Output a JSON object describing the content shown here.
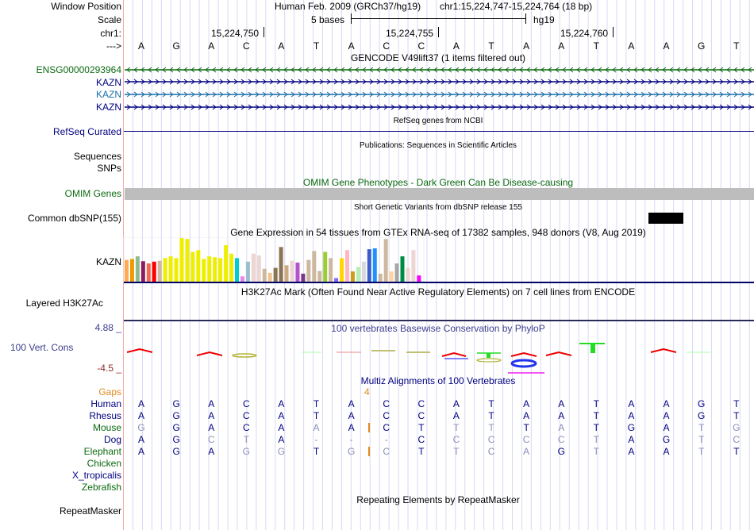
{
  "header": {
    "window_position_label": "Window Position",
    "scale_label": "Scale",
    "chrom_label": "chr1:",
    "strand_label": "--->",
    "assembly": "Human Feb. 2009 (GRCh37/hg19)",
    "position": "chr1:15,224,747-15,224,764 (18 bp)",
    "scale_text": "5 bases",
    "scale_db": "hg19",
    "ruler_ticks": [
      "15,224,750",
      "15,224,755",
      "15,224,760"
    ]
  },
  "sequence": [
    "A",
    "G",
    "A",
    "C",
    "A",
    "T",
    "A",
    "C",
    "C",
    "A",
    "T",
    "A",
    "A",
    "T",
    "A",
    "A",
    "G",
    "T"
  ],
  "tracks": {
    "gencode": {
      "title": "GENCODE V49lift37 (1 items filtered out)",
      "items": [
        {
          "label": "ENSG00000293964",
          "strand": "-",
          "color": "#0b6a10"
        },
        {
          "label": "KAZN",
          "strand": "+",
          "color": "#000080"
        },
        {
          "label": "KAZN",
          "strand": "+",
          "color": "#1a6fa8"
        },
        {
          "label": "KAZN",
          "strand": "+",
          "color": "#000080"
        }
      ]
    },
    "refseq": {
      "label": "RefSeq Curated",
      "title": "RefSeq genes from NCBI"
    },
    "publications": {
      "label1": "Sequences",
      "label2": "SNPs",
      "title": "Publications: Sequences in Scientific Articles"
    },
    "omim": {
      "label": "OMIM Genes",
      "title": "OMIM Gene Phenotypes - Dark Green Can Be Disease-causing"
    },
    "dbsnp": {
      "label": "Common dbSNP(155)",
      "title": "Short Genetic Variants from dbSNP release 155"
    },
    "gtex": {
      "label": "KAZN",
      "title": "Gene Expression in 54 tissues from GTEx RNA-seq of 17382 samples, 948 donors (V8, Aug 2019)",
      "bars": [
        {
          "v": 0.49,
          "c": "#ffaa55"
        },
        {
          "v": 0.51,
          "c": "#ee9a00"
        },
        {
          "v": 0.57,
          "c": "#8fbc8f"
        },
        {
          "v": 0.46,
          "c": "#8b1c62"
        },
        {
          "v": 0.41,
          "c": "#ee6a50"
        },
        {
          "v": 0.45,
          "c": "#ff0000"
        },
        {
          "v": 0.47,
          "c": "#cdb79e"
        },
        {
          "v": 0.53,
          "c": "#eeee00"
        },
        {
          "v": 0.57,
          "c": "#eeee00"
        },
        {
          "v": 0.53,
          "c": "#eeee00"
        },
        {
          "v": 0.98,
          "c": "#eeee00"
        },
        {
          "v": 0.96,
          "c": "#eeee00"
        },
        {
          "v": 0.67,
          "c": "#eeee00"
        },
        {
          "v": 0.71,
          "c": "#eeee00"
        },
        {
          "v": 0.51,
          "c": "#eeee00"
        },
        {
          "v": 0.57,
          "c": "#eeee00"
        },
        {
          "v": 0.55,
          "c": "#eeee00"
        },
        {
          "v": 0.53,
          "c": "#eeee00"
        },
        {
          "v": 0.82,
          "c": "#eeee00"
        },
        {
          "v": 0.63,
          "c": "#eeee00"
        },
        {
          "v": 0.53,
          "c": "#00cdcd"
        },
        {
          "v": 0.12,
          "c": "#ee82ee"
        },
        {
          "v": 0.45,
          "c": "#9ac0cd"
        },
        {
          "v": 0.63,
          "c": "#eed5d2"
        },
        {
          "v": 0.59,
          "c": "#eed5d2"
        },
        {
          "v": 0.29,
          "c": "#cdb79e"
        },
        {
          "v": 0.2,
          "c": "#eec591"
        },
        {
          "v": 0.31,
          "c": "#8b7355"
        },
        {
          "v": 0.78,
          "c": "#8b7355"
        },
        {
          "v": 0.37,
          "c": "#cdaa7d"
        },
        {
          "v": 0.47,
          "c": "#eed5d2"
        },
        {
          "v": 0.43,
          "c": "#b452cd"
        },
        {
          "v": 0.18,
          "c": "#7a378b"
        },
        {
          "v": 0.49,
          "c": "#cdb79e"
        },
        {
          "v": 0.69,
          "c": "#cdb79e"
        },
        {
          "v": 0.24,
          "c": "#cdb79e"
        },
        {
          "v": 0.67,
          "c": "#9acd32"
        },
        {
          "v": 0.53,
          "c": "#cdb79e"
        },
        {
          "v": 0.08,
          "c": "#7f69ff"
        },
        {
          "v": 0.53,
          "c": "#ffd700"
        },
        {
          "v": 0.71,
          "c": "#ffb6c1"
        },
        {
          "v": 0.23,
          "c": "#cd9b1d"
        },
        {
          "v": 0.33,
          "c": "#b4eeb4"
        },
        {
          "v": 0.45,
          "c": "#d9d9d9"
        },
        {
          "v": 0.73,
          "c": "#3a5fcd"
        },
        {
          "v": 0.75,
          "c": "#1e90ff"
        },
        {
          "v": 0.18,
          "c": "#cdb79e"
        },
        {
          "v": 0.96,
          "c": "#cdb79e"
        },
        {
          "v": 0.23,
          "c": "#ffd39b"
        },
        {
          "v": 0.41,
          "c": "#a6a6a6"
        },
        {
          "v": 0.57,
          "c": "#008b45"
        },
        {
          "v": 0.31,
          "c": "#eed5d2"
        },
        {
          "v": 0.71,
          "c": "#eed5d2"
        },
        {
          "v": 0.14,
          "c": "#ff00ff"
        }
      ]
    },
    "h3k27ac": {
      "label": "Layered H3K27Ac",
      "title": "H3K27Ac Mark (Often Found Near Active Regulatory Elements) on 7 cell lines from ENCODE"
    },
    "phylop": {
      "label": "100 Vert. Cons",
      "title": "100 vertebrates Basewise Conservation by PhyloP",
      "ymax": "4.88 _",
      "ymin": "-4.5 _"
    },
    "multiz": {
      "title": "Multiz Alignments of 100 Vertebrates",
      "gaps_label": "Gaps",
      "gap_count": "4",
      "species": [
        {
          "name": "Human",
          "color": "#000080",
          "seq": "AGACATACCATAATAAGT",
          "match": "111111111111111111"
        },
        {
          "name": "Rhesus",
          "color": "#000080",
          "seq": "AGACATACCATAATAAGT",
          "match": "111111111111111111"
        },
        {
          "name": "Mouse",
          "color": "#0b6a10",
          "seq": "GGACAAACTTTTATGATG",
          "match": "011110111001011100"
        },
        {
          "name": "Dog",
          "color": "#000080",
          "seq": "AGCTA---CCCCCTAGTC",
          "match": "110010001000001100"
        },
        {
          "name": "Elephant",
          "color": "#0b6a10",
          "seq": "AGAGGTGCTTCAGTAATT",
          "match": "111001001000101101"
        },
        {
          "name": "Chicken",
          "color": "#0b6a10",
          "seq": "",
          "match": ""
        },
        {
          "name": "X_tropicalis",
          "color": "#000080",
          "seq": "",
          "match": ""
        },
        {
          "name": "Zebrafish",
          "color": "#0b6a10",
          "seq": "",
          "match": ""
        }
      ]
    },
    "repeatmasker": {
      "label": "RepeatMasker",
      "title": "Repeating Elements by RepeatMasker"
    }
  },
  "colors": {
    "grid": "#d8d8f4",
    "redline": "#f4a8a8",
    "navy": "#000080",
    "dark_green": "#0b6a10",
    "omim_bar": "#bdbdbd"
  }
}
